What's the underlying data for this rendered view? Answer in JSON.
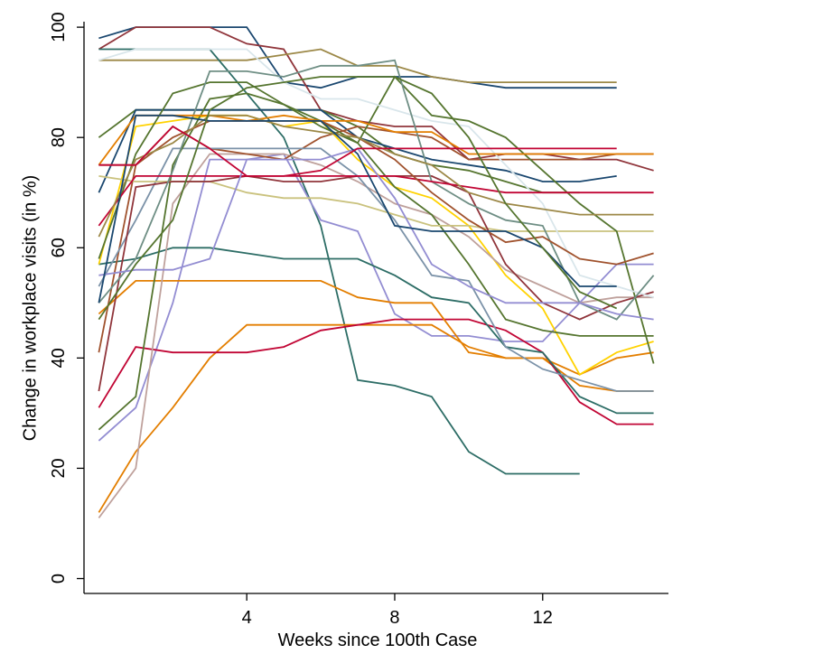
{
  "chart_data": {
    "type": "line",
    "x_label": "Weeks since 100th Case",
    "y_label": "Change in workplace visits (in %)",
    "xlim": [
      -0.4,
      15.4
    ],
    "ylim": [
      -2.7,
      101
    ],
    "xticks": [
      4,
      8,
      12
    ],
    "yticks": [
      0,
      20,
      40,
      60,
      80,
      100
    ],
    "x": [
      0,
      1,
      2,
      3,
      4,
      5,
      6,
      7,
      8,
      9,
      10,
      11,
      12,
      13,
      14,
      15
    ],
    "series": [
      {
        "color": "#1a476f",
        "values": [
          98,
          100,
          100,
          100,
          100,
          90,
          89,
          91,
          91,
          91,
          90,
          89,
          89,
          89,
          89,
          null
        ]
      },
      {
        "color": "#90353b",
        "values": [
          96,
          100,
          100,
          100,
          97,
          96,
          85,
          83,
          82,
          82,
          76,
          77,
          77,
          76,
          76,
          74
        ]
      },
      {
        "color": "#9c8847",
        "values": [
          94,
          94,
          94,
          94,
          94,
          95,
          96,
          93,
          93,
          91,
          90,
          90,
          90,
          90,
          90,
          null
        ]
      },
      {
        "color": "#2d6d66",
        "values": [
          96,
          96,
          96,
          96,
          88,
          80,
          64,
          36,
          35,
          33,
          23,
          19,
          19,
          19,
          null,
          null
        ]
      },
      {
        "color": "#55752f",
        "values": [
          80,
          85,
          85,
          85,
          85,
          85,
          85,
          82,
          77,
          75,
          74,
          72,
          70,
          70,
          null,
          null
        ]
      },
      {
        "color": "#1a476f",
        "values": [
          70,
          85,
          85,
          85,
          85,
          85,
          85,
          80,
          78,
          76,
          75,
          74,
          72,
          72,
          73,
          null
        ]
      },
      {
        "color": "#938dd2",
        "values": [
          25,
          31,
          50,
          76,
          76,
          77,
          65,
          63,
          48,
          44,
          44,
          43,
          43,
          50,
          57,
          57
        ]
      },
      {
        "color": "#e37e00",
        "values": [
          12,
          23,
          31,
          40,
          46,
          46,
          46,
          46,
          46,
          46,
          42,
          40,
          40,
          35,
          34,
          34
        ]
      },
      {
        "color": "#c10534",
        "values": [
          31,
          42,
          41,
          41,
          41,
          42,
          45,
          46,
          47,
          47,
          47,
          45,
          41,
          32,
          28,
          28
        ]
      },
      {
        "color": "#e37e00",
        "values": [
          48,
          54,
          54,
          54,
          54,
          54,
          54,
          51,
          50,
          50,
          41,
          40,
          40,
          37,
          40,
          41
        ]
      },
      {
        "color": "#2d6d66",
        "values": [
          57,
          58,
          60,
          60,
          59,
          58,
          58,
          58,
          55,
          51,
          50,
          42,
          41,
          33,
          30,
          30
        ]
      },
      {
        "color": "#ffd200",
        "values": [
          57,
          82,
          83,
          84,
          84,
          82,
          83,
          76,
          71,
          69,
          64,
          55,
          49,
          37,
          41,
          43
        ]
      },
      {
        "color": "#bfa19c",
        "values": [
          11,
          20,
          68,
          77,
          77,
          77,
          75,
          72,
          68,
          66,
          62,
          56,
          53,
          50,
          51,
          51
        ]
      },
      {
        "color": "#a0522d",
        "values": [
          41,
          75,
          82,
          78,
          77,
          76,
          80,
          82,
          81,
          80,
          76,
          76,
          76,
          76,
          77,
          77
        ]
      },
      {
        "color": "#7b92a8",
        "values": [
          53,
          65,
          78,
          78,
          78,
          78,
          78,
          73,
          65,
          55,
          54,
          42,
          38,
          36,
          34,
          34
        ]
      },
      {
        "color": "#55752f",
        "values": [
          27,
          33,
          75,
          87,
          88,
          86,
          82,
          79,
          71,
          66,
          57,
          47,
          45,
          44,
          44,
          44
        ]
      },
      {
        "color": "#cac27e",
        "values": [
          73,
          72,
          72,
          72,
          70,
          69,
          69,
          68,
          66,
          64,
          64,
          63,
          63,
          63,
          63,
          63
        ]
      },
      {
        "color": "#90353b",
        "values": [
          34,
          71,
          72,
          72,
          73,
          72,
          72,
          73,
          73,
          73,
          70,
          57,
          50,
          47,
          50,
          52
        ]
      },
      {
        "color": "#55752f",
        "values": [
          58,
          77,
          88,
          90,
          90,
          86,
          83,
          79,
          91,
          84,
          83,
          80,
          74,
          68,
          63,
          39
        ]
      },
      {
        "color": "#d9e6eb",
        "values": [
          94,
          96,
          96,
          96,
          96,
          90,
          87,
          87,
          85,
          83,
          82,
          75,
          68,
          55,
          53,
          51
        ]
      },
      {
        "color": "#6e8e84",
        "values": [
          50,
          58,
          74,
          92,
          92,
          91,
          93,
          93,
          94,
          72,
          68,
          65,
          64,
          50,
          47,
          55
        ]
      },
      {
        "color": "#c10534",
        "values": [
          64,
          73,
          73,
          73,
          73,
          73,
          73,
          73,
          73,
          72,
          71,
          70,
          70,
          70,
          70,
          70
        ]
      },
      {
        "color": "#e37e00",
        "values": [
          75,
          84,
          84,
          84,
          83,
          84,
          83,
          83,
          81,
          81,
          77,
          77,
          77,
          77,
          77,
          77
        ]
      },
      {
        "color": "#a0522d",
        "values": [
          75,
          75,
          80,
          83,
          83,
          83,
          83,
          80,
          76,
          70,
          65,
          61,
          62,
          58,
          57,
          59
        ]
      },
      {
        "color": "#938dd2",
        "values": [
          55,
          56,
          56,
          58,
          76,
          76,
          76,
          78,
          69,
          57,
          53,
          50,
          50,
          50,
          48,
          47
        ]
      },
      {
        "color": "#9c8847",
        "values": [
          62,
          76,
          79,
          84,
          84,
          82,
          81,
          80,
          77,
          75,
          70,
          68,
          67,
          66,
          66,
          66
        ]
      },
      {
        "color": "#1a476f",
        "values": [
          50,
          84,
          84,
          83,
          83,
          83,
          83,
          77,
          64,
          63,
          63,
          63,
          60,
          53,
          53,
          null
        ]
      },
      {
        "color": "#c10534",
        "values": [
          75,
          75,
          82,
          78,
          73,
          73,
          74,
          78,
          78,
          78,
          78,
          78,
          78,
          78,
          78,
          null
        ]
      },
      {
        "color": "#55752f",
        "values": [
          47,
          57,
          65,
          85,
          89,
          90,
          91,
          91,
          91,
          88,
          80,
          68,
          60,
          52,
          49,
          null
        ]
      }
    ]
  }
}
